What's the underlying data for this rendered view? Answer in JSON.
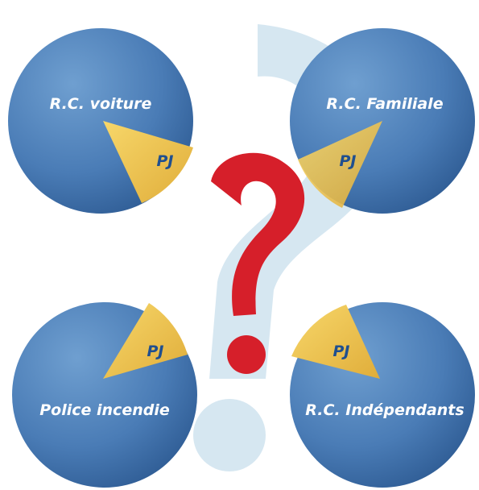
{
  "panels": [
    {
      "label": "R.C. voiture",
      "slice_label": "PJ"
    },
    {
      "label": "R.C. Familiale",
      "slice_label": "PJ"
    },
    {
      "label": "Police incendie",
      "slice_label": "PJ"
    },
    {
      "label": "R.C. Indépendants",
      "slice_label": "PJ"
    }
  ]
}
